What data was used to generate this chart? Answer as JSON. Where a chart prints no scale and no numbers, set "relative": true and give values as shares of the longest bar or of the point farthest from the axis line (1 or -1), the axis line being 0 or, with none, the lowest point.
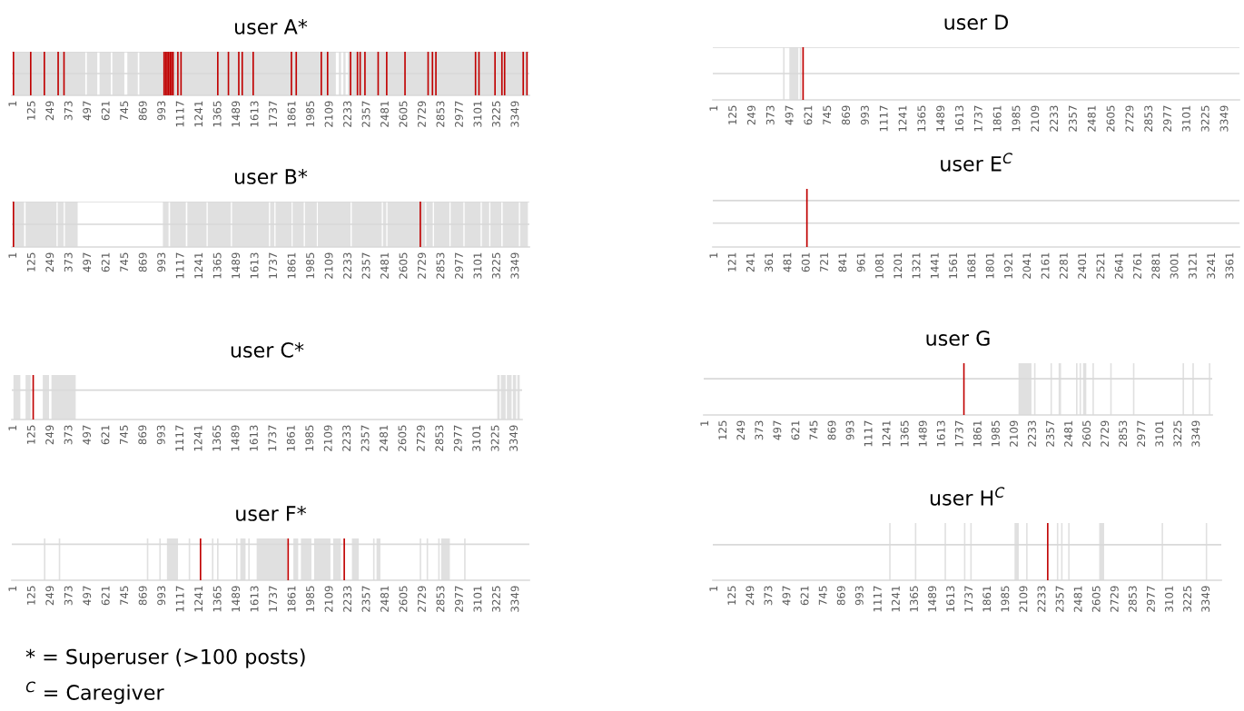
{
  "chart_data": [
    {
      "type": "bar",
      "title": "user A*",
      "relative": true,
      "xlim": [
        -10,
        3440
      ],
      "xticks": [
        1,
        125,
        249,
        373,
        497,
        621,
        745,
        869,
        993,
        1117,
        1241,
        1365,
        1489,
        1613,
        1737,
        1861,
        1985,
        2109,
        2233,
        2357,
        2481,
        2605,
        2729,
        2853,
        2977,
        3101,
        3225,
        3349
      ],
      "ref_lines": [
        {
          "axis": "y",
          "value": 0.5,
          "color": "#d9d9d9"
        },
        {
          "axis": "y",
          "value": 1,
          "color": "#d9d9d9"
        }
      ],
      "tick_labels": "x",
      "series": [
        {
          "color": "#c00000",
          "x": [
            1,
            116,
            207,
            299,
            338,
            1005,
            1015,
            1025,
            1035,
            1045,
            1055,
            1065,
            1097,
            1118,
            1363,
            1434,
            1503,
            1526,
            1599,
            1854,
            1886,
            2053,
            2095,
            2248,
            2294,
            2312,
            2344,
            2432,
            2489,
            2611,
            2765,
            2794,
            2817,
            3081,
            3104,
            3211,
            3257,
            3275,
            3399,
            3424
          ],
          "values": [
            1,
            1,
            1,
            1,
            1,
            1,
            1,
            1,
            1,
            1,
            1,
            1,
            1,
            1,
            1,
            1,
            1,
            1,
            1,
            1,
            1,
            1,
            1,
            1,
            1,
            1,
            1,
            1,
            1,
            1,
            1,
            1,
            1,
            1,
            1,
            1,
            1,
            1,
            1,
            1
          ]
        }
      ],
      "bands": [
        {
          "axis": "x",
          "from": 1,
          "to": 480,
          "color": "#e0e0e0"
        },
        {
          "axis": "x",
          "from": 490,
          "to": 560,
          "color": "#e0e0e0"
        },
        {
          "axis": "x",
          "from": 575,
          "to": 650,
          "color": "#e0e0e0"
        },
        {
          "axis": "x",
          "from": 660,
          "to": 740,
          "color": "#e0e0e0"
        },
        {
          "axis": "x",
          "from": 760,
          "to": 830,
          "color": "#e0e0e0"
        },
        {
          "axis": "x",
          "from": 840,
          "to": 2150,
          "color": "#e0e0e0"
        },
        {
          "axis": "x",
          "from": 2170,
          "to": 2185,
          "color": "#e0e0e0"
        },
        {
          "axis": "x",
          "from": 2200,
          "to": 2215,
          "color": "#e0e0e0"
        },
        {
          "axis": "x",
          "from": 2230,
          "to": 3430,
          "color": "#e0e0e0"
        }
      ]
    },
    {
      "type": "bar",
      "title": "user D",
      "relative": true,
      "xlim": [
        -10,
        3444
      ],
      "xticks": [
        1,
        125,
        249,
        373,
        497,
        621,
        745,
        869,
        993,
        1117,
        1241,
        1365,
        1489,
        1613,
        1737,
        1861,
        1985,
        2109,
        2233,
        2357,
        2481,
        2605,
        2729,
        2853,
        2977,
        3101,
        3225,
        3349
      ],
      "ref_lines": [
        {
          "axis": "y",
          "value": 0.5,
          "color": "#d9d9d9"
        },
        {
          "axis": "y",
          "value": 1,
          "color": "#d9d9d9"
        }
      ],
      "tick_labels": "x",
      "series": [
        {
          "color": "#c00000",
          "x": [
            582
          ],
          "values": [
            1
          ]
        }
      ],
      "bands": [
        {
          "axis": "x",
          "from": 451,
          "to": 461,
          "color": "#e0e0e0"
        },
        {
          "axis": "x",
          "from": 492,
          "to": 551,
          "color": "#e0e0e0"
        },
        {
          "axis": "x",
          "from": 560,
          "to": 570,
          "color": "#e0e0e0"
        }
      ]
    },
    {
      "type": "bar",
      "title": "user B*",
      "relative": true,
      "xlim": [
        -10,
        3440
      ],
      "xticks": [
        1,
        125,
        249,
        373,
        497,
        621,
        745,
        869,
        993,
        1117,
        1241,
        1365,
        1489,
        1613,
        1737,
        1861,
        1985,
        2109,
        2233,
        2357,
        2481,
        2605,
        2729,
        2853,
        2977,
        3101,
        3225,
        3349
      ],
      "ref_lines": [
        {
          "axis": "y",
          "value": 0.5,
          "color": "#d9d9d9"
        },
        {
          "axis": "y",
          "value": 1,
          "color": "#d9d9d9"
        }
      ],
      "tick_labels": "x",
      "series": [
        {
          "color": "#c00000",
          "x": [
            1,
            2713
          ],
          "values": [
            1,
            1
          ]
        }
      ],
      "bands": [
        {
          "axis": "x",
          "from": 1,
          "to": 72,
          "color": "#e0e0e0"
        },
        {
          "axis": "x",
          "from": 82,
          "to": 288,
          "color": "#e0e0e0"
        },
        {
          "axis": "x",
          "from": 296,
          "to": 336,
          "color": "#e0e0e0"
        },
        {
          "axis": "x",
          "from": 344,
          "to": 429,
          "color": "#e0e0e0"
        },
        {
          "axis": "x",
          "from": 997,
          "to": 1035,
          "color": "#e0e0e0"
        },
        {
          "axis": "x",
          "from": 1045,
          "to": 1150,
          "color": "#e0e0e0"
        },
        {
          "axis": "x",
          "from": 1160,
          "to": 1288,
          "color": "#e0e0e0"
        },
        {
          "axis": "x",
          "from": 1296,
          "to": 1450,
          "color": "#e0e0e0"
        },
        {
          "axis": "x",
          "from": 1458,
          "to": 1704,
          "color": "#e0e0e0"
        },
        {
          "axis": "x",
          "from": 1712,
          "to": 1740,
          "color": "#e0e0e0"
        },
        {
          "axis": "x",
          "from": 1748,
          "to": 1855,
          "color": "#e0e0e0"
        },
        {
          "axis": "x",
          "from": 1862,
          "to": 1936,
          "color": "#e0e0e0"
        },
        {
          "axis": "x",
          "from": 1944,
          "to": 2023,
          "color": "#e0e0e0"
        },
        {
          "axis": "x",
          "from": 2030,
          "to": 2248,
          "color": "#e0e0e0"
        },
        {
          "axis": "x",
          "from": 2256,
          "to": 2456,
          "color": "#e0e0e0"
        },
        {
          "axis": "x",
          "from": 2464,
          "to": 2486,
          "color": "#e0e0e0"
        },
        {
          "axis": "x",
          "from": 2494,
          "to": 2745,
          "color": "#e0e0e0"
        },
        {
          "axis": "x",
          "from": 2753,
          "to": 2796,
          "color": "#e0e0e0"
        },
        {
          "axis": "x",
          "from": 2804,
          "to": 2907,
          "color": "#e0e0e0"
        },
        {
          "axis": "x",
          "from": 2915,
          "to": 3000,
          "color": "#e0e0e0"
        },
        {
          "axis": "x",
          "from": 3008,
          "to": 3115,
          "color": "#e0e0e0"
        },
        {
          "axis": "x",
          "from": 3123,
          "to": 3172,
          "color": "#e0e0e0"
        },
        {
          "axis": "x",
          "from": 3180,
          "to": 3253,
          "color": "#e0e0e0"
        },
        {
          "axis": "x",
          "from": 3262,
          "to": 3370,
          "color": "#e0e0e0"
        },
        {
          "axis": "x",
          "from": 3378,
          "to": 3430,
          "color": "#e0e0e0"
        }
      ]
    },
    {
      "type": "bar",
      "title": "user E$^{C}$",
      "relative": true,
      "xlim": [
        -10,
        3420
      ],
      "xticks": [
        1,
        121,
        241,
        361,
        481,
        601,
        721,
        841,
        961,
        1081,
        1201,
        1321,
        1441,
        1561,
        1681,
        1801,
        1921,
        2041,
        2161,
        2281,
        2401,
        2521,
        2641,
        2761,
        2881,
        3001,
        3121,
        3241,
        3361
      ],
      "ref_lines": [
        {
          "axis": "y",
          "value": 0.41,
          "color": "#d9d9d9"
        },
        {
          "axis": "y",
          "value": 0.8,
          "color": "#d9d9d9"
        }
      ],
      "tick_labels": "x",
      "series": [
        {
          "color": "#c00000",
          "x": [
            603
          ],
          "values": [
            1
          ]
        }
      ]
    },
    {
      "type": "bar",
      "title": "user C*",
      "relative": true,
      "xlim": [
        -10,
        3400
      ],
      "xticks": [
        1,
        125,
        249,
        373,
        497,
        621,
        745,
        869,
        993,
        1117,
        1241,
        1365,
        1489,
        1613,
        1737,
        1861,
        1985,
        2109,
        2233,
        2357,
        2481,
        2605,
        2729,
        2853,
        2977,
        3101,
        3225,
        3349
      ],
      "ref_lines": [
        {
          "axis": "y",
          "value": 0.66,
          "color": "#d9d9d9"
        }
      ],
      "tick_labels": "x",
      "series": [
        {
          "color": "#c00000",
          "x": [
            133
          ],
          "values": [
            1
          ]
        }
      ],
      "bands": [
        {
          "axis": "x",
          "from": 1,
          "to": 47,
          "color": "#e0e0e0"
        },
        {
          "axis": "x",
          "from": 82,
          "to": 116,
          "color": "#e0e0e0"
        },
        {
          "axis": "x",
          "from": 197,
          "to": 239,
          "color": "#e0e0e0"
        },
        {
          "axis": "x",
          "from": 255,
          "to": 417,
          "color": "#e0e0e0"
        },
        {
          "axis": "x",
          "from": 3234,
          "to": 3250,
          "color": "#e0e0e0"
        },
        {
          "axis": "x",
          "from": 3258,
          "to": 3290,
          "color": "#e0e0e0"
        },
        {
          "axis": "x",
          "from": 3298,
          "to": 3330,
          "color": "#e0e0e0"
        },
        {
          "axis": "x",
          "from": 3338,
          "to": 3360,
          "color": "#e0e0e0"
        },
        {
          "axis": "x",
          "from": 3368,
          "to": 3384,
          "color": "#e0e0e0"
        }
      ]
    },
    {
      "type": "bar",
      "title": "user G",
      "relative": true,
      "xlim": [
        -10,
        3455
      ],
      "xticks": [
        1,
        125,
        249,
        373,
        497,
        621,
        745,
        869,
        993,
        1117,
        1241,
        1365,
        1489,
        1613,
        1737,
        1861,
        1985,
        2109,
        2233,
        2357,
        2481,
        2605,
        2729,
        2853,
        2977,
        3101,
        3225,
        3349
      ],
      "ref_lines": [
        {
          "axis": "y",
          "value": 0.7,
          "color": "#d9d9d9"
        }
      ],
      "tick_labels": "x",
      "series": [
        {
          "color": "#c00000",
          "x": [
            1763
          ],
          "values": [
            1
          ]
        }
      ],
      "bands": [
        {
          "axis": "x",
          "from": 2135,
          "to": 2223,
          "color": "#e0e0e0"
        },
        {
          "axis": "x",
          "from": 2241,
          "to": 2251,
          "color": "#e0e0e0"
        },
        {
          "axis": "x",
          "from": 2353,
          "to": 2363,
          "color": "#e0e0e0"
        },
        {
          "axis": "x",
          "from": 2408,
          "to": 2425,
          "color": "#e0e0e0"
        },
        {
          "axis": "x",
          "from": 2527,
          "to": 2537,
          "color": "#e0e0e0"
        },
        {
          "axis": "x",
          "from": 2551,
          "to": 2561,
          "color": "#e0e0e0"
        },
        {
          "axis": "x",
          "from": 2575,
          "to": 2597,
          "color": "#e0e0e0"
        },
        {
          "axis": "x",
          "from": 2639,
          "to": 2649,
          "color": "#e0e0e0"
        },
        {
          "axis": "x",
          "from": 2760,
          "to": 2770,
          "color": "#e0e0e0"
        },
        {
          "axis": "x",
          "from": 2915,
          "to": 2925,
          "color": "#e0e0e0"
        },
        {
          "axis": "x",
          "from": 3253,
          "to": 3263,
          "color": "#e0e0e0"
        },
        {
          "axis": "x",
          "from": 3320,
          "to": 3330,
          "color": "#e0e0e0"
        },
        {
          "axis": "x",
          "from": 3432,
          "to": 3442,
          "color": "#e0e0e0"
        }
      ]
    },
    {
      "type": "bar",
      "title": "user F*",
      "relative": true,
      "xlim": [
        -10,
        3440
      ],
      "xticks": [
        1,
        125,
        249,
        373,
        497,
        621,
        745,
        869,
        993,
        1117,
        1241,
        1365,
        1489,
        1613,
        1737,
        1861,
        1985,
        2109,
        2233,
        2357,
        2481,
        2605,
        2729,
        2853,
        2977,
        3101,
        3225,
        3349
      ],
      "ref_lines": [
        {
          "axis": "y",
          "value": 0.86,
          "color": "#d9d9d9"
        }
      ],
      "tick_labels": "x",
      "annotations": [
        "* = Superuser (>100 posts)",
        "$^{C}$ = Caregiver"
      ],
      "series": [
        {
          "color": "#c00000",
          "x": [
            1248,
            1832,
            2206
          ],
          "values": [
            1,
            1,
            1
          ]
        }
      ],
      "bands": [
        {
          "axis": "x",
          "from": 204,
          "to": 214,
          "color": "#e0e0e0"
        },
        {
          "axis": "x",
          "from": 303,
          "to": 313,
          "color": "#e0e0e0"
        },
        {
          "axis": "x",
          "from": 890,
          "to": 900,
          "color": "#e0e0e0"
        },
        {
          "axis": "x",
          "from": 973,
          "to": 983,
          "color": "#e0e0e0"
        },
        {
          "axis": "x",
          "from": 1169,
          "to": 1179,
          "color": "#e0e0e0"
        },
        {
          "axis": "x",
          "from": 1324,
          "to": 1334,
          "color": "#e0e0e0"
        },
        {
          "axis": "x",
          "from": 1358,
          "to": 1368,
          "color": "#e0e0e0"
        },
        {
          "axis": "x",
          "from": 1485,
          "to": 1495,
          "color": "#e0e0e0"
        },
        {
          "axis": "x",
          "from": 1566,
          "to": 1576,
          "color": "#e0e0e0"
        },
        {
          "axis": "x",
          "from": 2398,
          "to": 2408,
          "color": "#e0e0e0"
        },
        {
          "axis": "x",
          "from": 2421,
          "to": 2447,
          "color": "#e0e0e0"
        },
        {
          "axis": "x",
          "from": 2709,
          "to": 2719,
          "color": "#e0e0e0"
        },
        {
          "axis": "x",
          "from": 2755,
          "to": 2765,
          "color": "#e0e0e0"
        },
        {
          "axis": "x",
          "from": 2832,
          "to": 2842,
          "color": "#e0e0e0"
        },
        {
          "axis": "x",
          "from": 3005,
          "to": 3015,
          "color": "#e0e0e0"
        },
        {
          "axis": "x",
          "from": 1024,
          "to": 1098,
          "color": "#e0e0e0"
        },
        {
          "axis": "x",
          "from": 1513,
          "to": 1548,
          "color": "#e0e0e0"
        },
        {
          "axis": "x",
          "from": 1622,
          "to": 1825,
          "color": "#e0e0e0"
        },
        {
          "axis": "x",
          "from": 1867,
          "to": 1899,
          "color": "#e0e0e0"
        },
        {
          "axis": "x",
          "from": 1917,
          "to": 1987,
          "color": "#e0e0e0"
        },
        {
          "axis": "x",
          "from": 2005,
          "to": 2114,
          "color": "#e0e0e0"
        },
        {
          "axis": "x",
          "from": 2132,
          "to": 2183,
          "color": "#e0e0e0"
        },
        {
          "axis": "x",
          "from": 2257,
          "to": 2303,
          "color": "#e0e0e0"
        },
        {
          "axis": "x",
          "from": 2852,
          "to": 2910,
          "color": "#e0e0e0"
        }
      ]
    },
    {
      "type": "bar",
      "title": "user H$^{C}$",
      "relative": true,
      "xlim": [
        -10,
        3450
      ],
      "xticks": [
        1,
        125,
        249,
        373,
        497,
        621,
        745,
        869,
        993,
        1117,
        1241,
        1365,
        1489,
        1613,
        1737,
        1861,
        1985,
        2109,
        2233,
        2357,
        2481,
        2605,
        2729,
        2853,
        2977,
        3101,
        3225,
        3349
      ],
      "ref_lines": [
        {
          "axis": "y",
          "value": 0.62,
          "color": "#d9d9d9"
        }
      ],
      "tick_labels": "x",
      "series": [
        {
          "color": "#c00000",
          "x": [
            2269
          ],
          "values": [
            1
          ]
        }
      ],
      "bands": [
        {
          "axis": "x",
          "from": 1190,
          "to": 1200,
          "color": "#e0e0e0"
        },
        {
          "axis": "x",
          "from": 1365,
          "to": 1375,
          "color": "#e0e0e0"
        },
        {
          "axis": "x",
          "from": 1567,
          "to": 1577,
          "color": "#e0e0e0"
        },
        {
          "axis": "x",
          "from": 1699,
          "to": 1709,
          "color": "#e0e0e0"
        },
        {
          "axis": "x",
          "from": 1742,
          "to": 1752,
          "color": "#e0e0e0"
        },
        {
          "axis": "x",
          "from": 2043,
          "to": 2072,
          "color": "#e0e0e0"
        },
        {
          "axis": "x",
          "from": 2122,
          "to": 2132,
          "color": "#e0e0e0"
        },
        {
          "axis": "x",
          "from": 2331,
          "to": 2341,
          "color": "#e0e0e0"
        },
        {
          "axis": "x",
          "from": 2360,
          "to": 2370,
          "color": "#e0e0e0"
        },
        {
          "axis": "x",
          "from": 2408,
          "to": 2418,
          "color": "#e0e0e0"
        },
        {
          "axis": "x",
          "from": 2619,
          "to": 2653,
          "color": "#e0e0e0"
        },
        {
          "axis": "x",
          "from": 3044,
          "to": 3054,
          "color": "#e0e0e0"
        },
        {
          "axis": "x",
          "from": 3344,
          "to": 3354,
          "color": "#e0e0e0"
        }
      ]
    }
  ]
}
